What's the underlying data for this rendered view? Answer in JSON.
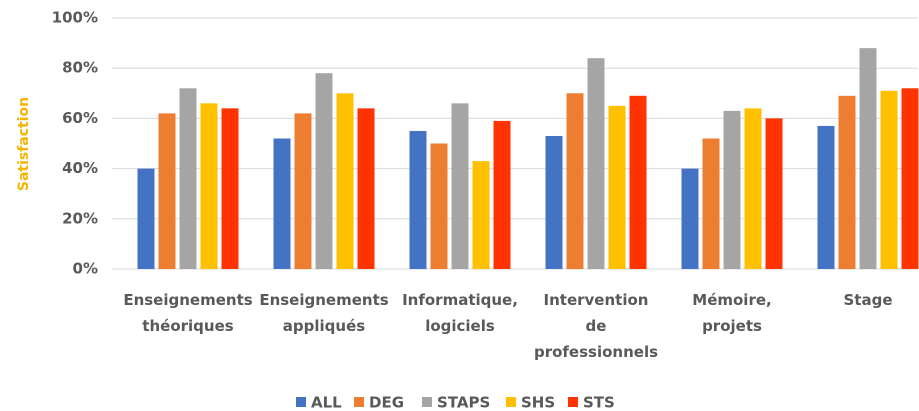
{
  "chart_data": {
    "type": "bar",
    "y_label": "Satisfaction",
    "categories": [
      "Enseignements théoriques",
      "Enseignements appliqués",
      "Informatique, logiciels",
      "Intervention de professionnels",
      "Mémoire, projets",
      "Stage"
    ],
    "series": [
      {
        "name": "ALL",
        "color": "#4472c4",
        "values": [
          40,
          52,
          55,
          53,
          40,
          57
        ]
      },
      {
        "name": "DEG",
        "color": "#ed7d31",
        "values": [
          62,
          62,
          50,
          70,
          52,
          69
        ]
      },
      {
        "name": "STAPS",
        "color": "#a5a5a5",
        "values": [
          72,
          78,
          66,
          84,
          63,
          88
        ]
      },
      {
        "name": "SHS",
        "color": "#ffc000",
        "values": [
          66,
          70,
          43,
          65,
          64,
          71
        ]
      },
      {
        "name": "STS",
        "color": "#ff3300",
        "values": [
          64,
          64,
          59,
          69,
          60,
          72
        ]
      }
    ],
    "ylim": [
      0,
      100
    ],
    "yticks": [
      {
        "value": 0,
        "label": "0%"
      },
      {
        "value": 20,
        "label": "20%"
      },
      {
        "value": 40,
        "label": "40%"
      },
      {
        "value": 60,
        "label": "60%"
      },
      {
        "value": 80,
        "label": "80%"
      },
      {
        "value": 100,
        "label": "100%"
      }
    ],
    "grid": true,
    "legend": "bottom"
  }
}
